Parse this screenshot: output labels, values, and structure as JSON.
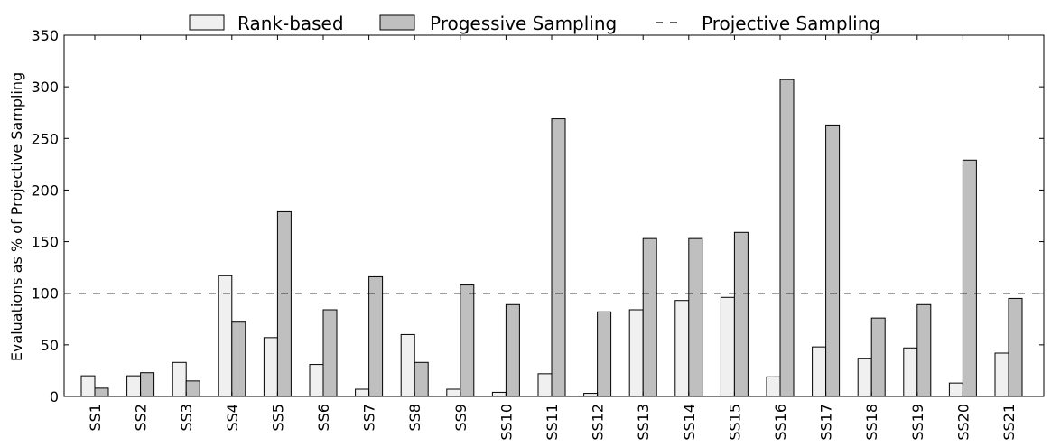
{
  "chart_data": {
    "type": "bar",
    "categories": [
      "SS1",
      "SS2",
      "SS3",
      "SS4",
      "SS5",
      "SS6",
      "SS7",
      "SS8",
      "SS9",
      "SS10",
      "SS11",
      "SS12",
      "SS13",
      "SS14",
      "SS15",
      "SS16",
      "SS17",
      "SS18",
      "SS19",
      "SS20",
      "SS21"
    ],
    "series": [
      {
        "name": "Rank-based",
        "color": "#f0f0f0",
        "values": [
          20,
          20,
          33,
          117,
          57,
          31,
          7,
          60,
          7,
          4,
          22,
          3,
          84,
          93,
          96,
          19,
          48,
          37,
          47,
          13,
          42
        ]
      },
      {
        "name": "Progessive Sampling",
        "color": "#bfbfbf",
        "values": [
          8,
          23,
          15,
          72,
          179,
          84,
          116,
          33,
          108,
          89,
          269,
          82,
          153,
          153,
          159,
          307,
          263,
          76,
          89,
          229,
          95
        ]
      }
    ],
    "reference_line": {
      "name": "Projective Sampling",
      "value": 100,
      "style": "dashed"
    },
    "ylabel": "Evaluations as % of Projective Sampling",
    "xlabel": "",
    "ylim": [
      0,
      350
    ],
    "yticks": [
      0,
      50,
      100,
      150,
      200,
      250,
      300,
      350
    ],
    "grid": false,
    "legend_position": "top"
  }
}
